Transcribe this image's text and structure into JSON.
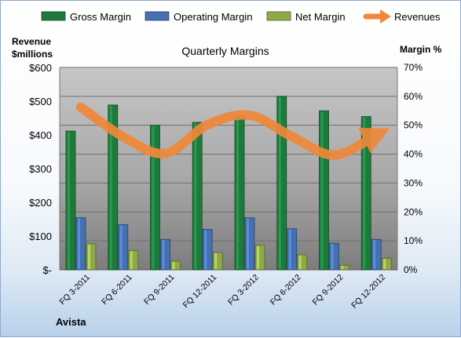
{
  "chart_data": {
    "type": "bar",
    "title": "Quarterly Margins",
    "company": "Avista",
    "ylabel_left_line1": "Revenue",
    "ylabel_left_line2": "$millions",
    "ylabel_right": "Margin %",
    "categories": [
      "FQ 3-2011",
      "FQ 6-2011",
      "FQ 9-2011",
      "FQ 12-2011",
      "FQ 3-2012",
      "FQ 6-2012",
      "FQ 9-2012",
      "FQ 12-2012"
    ],
    "ylim_left": [
      0,
      600
    ],
    "ylim_right": [
      0,
      70
    ],
    "left_ticks": [
      "$-",
      "$100",
      "$200",
      "$300",
      "$400",
      "$500",
      "$600"
    ],
    "right_ticks": [
      "0%",
      "10%",
      "20%",
      "30%",
      "40%",
      "50%",
      "60%",
      "70%"
    ],
    "series": [
      {
        "name": "Gross Margin",
        "type": "bar",
        "axis": "right",
        "color": "#1e7a3c",
        "values": [
          48,
          57,
          50,
          51,
          53,
          60,
          55,
          53
        ]
      },
      {
        "name": "Operating Margin",
        "type": "bar",
        "axis": "right",
        "color": "#4670b0",
        "values": [
          18,
          15.6,
          10.5,
          14,
          18,
          14.2,
          9.2,
          10.5
        ]
      },
      {
        "name": "Net Margin",
        "type": "bar",
        "axis": "right",
        "color": "#8fa84a",
        "values": [
          9,
          6.7,
          3,
          6,
          8.5,
          5.2,
          1.6,
          4
        ]
      },
      {
        "name": "Revenues",
        "type": "line",
        "axis": "left",
        "color": "#f0883a",
        "values": [
          482,
          395,
          345,
          430,
          458,
          395,
          340,
          400
        ]
      }
    ],
    "grid": true,
    "legend_position": "top"
  }
}
